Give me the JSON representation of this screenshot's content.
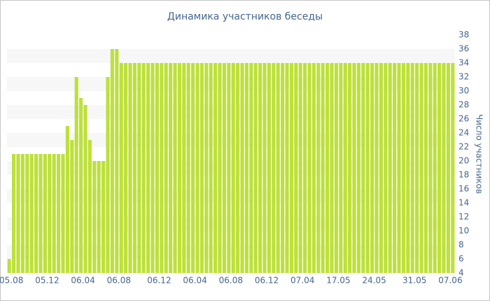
{
  "chart_data": {
    "type": "bar",
    "title": "Динамика участников беседы",
    "y_label": "Число участников",
    "categories": [
      "05.08",
      null,
      null,
      null,
      null,
      null,
      null,
      null,
      "05.12",
      null,
      null,
      null,
      null,
      null,
      null,
      null,
      "06.04",
      null,
      null,
      null,
      null,
      null,
      null,
      null,
      "06.08",
      null,
      null,
      null,
      null,
      null,
      null,
      null,
      null,
      "06.12",
      null,
      null,
      null,
      null,
      null,
      null,
      null,
      "06.04",
      null,
      null,
      null,
      null,
      null,
      null,
      null,
      "06.08",
      null,
      null,
      null,
      null,
      null,
      null,
      null,
      "06.12",
      null,
      null,
      null,
      null,
      null,
      null,
      null,
      "07.04",
      null,
      null,
      null,
      null,
      null,
      null,
      null,
      "17.05",
      null,
      null,
      null,
      null,
      null,
      null,
      null,
      "24.05",
      null,
      null,
      null,
      null,
      null,
      null,
      null,
      null,
      "31.05",
      null,
      null,
      null,
      null,
      null,
      null,
      null,
      "07.06",
      null
    ],
    "values": [
      6,
      21,
      21,
      21,
      21,
      21,
      21,
      21,
      21,
      21,
      21,
      21,
      21,
      25,
      23,
      32,
      29,
      28,
      23,
      20,
      20,
      20,
      32,
      36,
      36,
      34,
      34,
      34,
      34,
      34,
      34,
      34,
      34,
      34,
      34,
      34,
      34,
      34,
      34,
      34,
      34,
      34,
      34,
      34,
      34,
      34,
      34,
      34,
      34,
      34,
      34,
      34,
      34,
      34,
      34,
      34,
      34,
      34,
      34,
      34,
      34,
      34,
      34,
      34,
      34,
      34,
      34,
      34,
      34,
      34,
      34,
      34,
      34,
      34,
      34,
      34,
      34,
      34,
      34,
      34,
      34,
      34,
      34,
      34,
      34,
      34,
      34,
      34,
      34,
      34,
      34,
      34,
      34,
      34,
      34,
      34,
      34,
      34,
      34,
      34
    ],
    "color": "#bde03a",
    "ylim": [
      4,
      38
    ],
    "yticks": [
      4,
      6,
      8,
      10,
      12,
      14,
      16,
      18,
      20,
      22,
      24,
      26,
      28,
      30,
      32,
      34,
      36,
      38
    ],
    "grid": true
  }
}
